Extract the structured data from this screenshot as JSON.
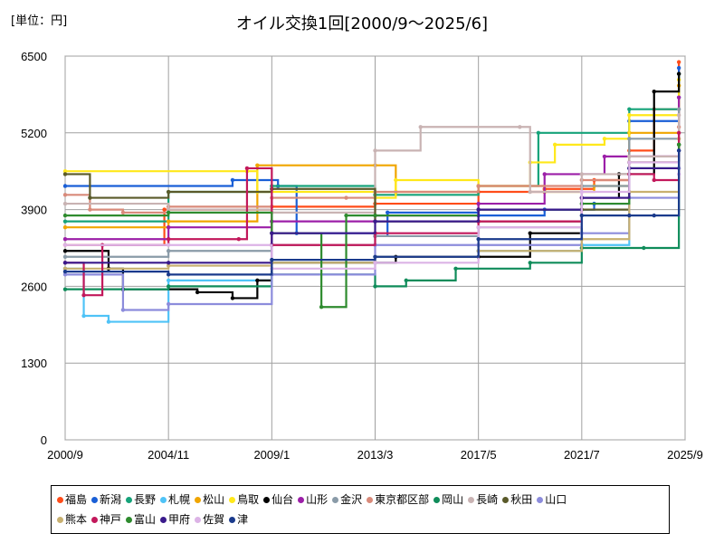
{
  "unit_label": "[単位：円]",
  "chart_data": {
    "type": "line",
    "title": "オイル交換1回[2000/9～2025/6]",
    "xlabel": "",
    "ylabel": "",
    "x_ticks": [
      "2000/9",
      "2004/11",
      "2009/1",
      "2013/3",
      "2017/5",
      "2021/7",
      "2025/9"
    ],
    "x_range": [
      "2000/9",
      "2025/9"
    ],
    "y_ticks": [
      0,
      1300,
      2600,
      3900,
      5200,
      6500
    ],
    "ylim": [
      0,
      6500
    ],
    "grid": true,
    "legend_position": "bottom",
    "series": [
      {
        "name": "福島",
        "color": "#ff4d1a",
        "points": [
          [
            "2000/9",
            3300
          ],
          [
            "2004/9",
            3900
          ],
          [
            "2009/1",
            3950
          ],
          [
            "2013/3",
            4000
          ],
          [
            "2017/5",
            4200
          ],
          [
            "2020/1",
            4250
          ],
          [
            "2022/1",
            4400
          ],
          [
            "2023/6",
            4900
          ],
          [
            "2024/6",
            5600
          ],
          [
            "2025/6",
            6400
          ]
        ]
      },
      {
        "name": "新潟",
        "color": "#1a5fd6",
        "points": [
          [
            "2000/9",
            4300
          ],
          [
            "2007/6",
            4400
          ],
          [
            "2009/4",
            4300
          ],
          [
            "2010/1",
            3500
          ],
          [
            "2013/3",
            3450
          ],
          [
            "2013/9",
            3850
          ],
          [
            "2017/5",
            3800
          ],
          [
            "2020/1",
            3900
          ],
          [
            "2022/1",
            4000
          ],
          [
            "2023/6",
            5400
          ],
          [
            "2025/6",
            6300
          ]
        ]
      },
      {
        "name": "長野",
        "color": "#16a37a",
        "points": [
          [
            "2000/9",
            3700
          ],
          [
            "2004/11",
            4200
          ],
          [
            "2009/1",
            4300
          ],
          [
            "2013/3",
            4150
          ],
          [
            "2017/5",
            4300
          ],
          [
            "2019/10",
            5200
          ],
          [
            "2023/6",
            5600
          ],
          [
            "2025/6",
            6200
          ]
        ]
      },
      {
        "name": "札幌",
        "color": "#4fc3f7",
        "points": [
          [
            "2000/9",
            2900
          ],
          [
            "2001/6",
            2100
          ],
          [
            "2002/6",
            2000
          ],
          [
            "2004/11",
            2700
          ],
          [
            "2009/1",
            3000
          ],
          [
            "2013/3",
            3100
          ],
          [
            "2017/5",
            3200
          ],
          [
            "2021/7",
            3300
          ],
          [
            "2023/6",
            4600
          ],
          [
            "2025/6",
            5800
          ]
        ]
      },
      {
        "name": "松山",
        "color": "#f0a500",
        "points": [
          [
            "2000/9",
            3600
          ],
          [
            "2004/11",
            3700
          ],
          [
            "2008/6",
            4650
          ],
          [
            "2013/3",
            4650
          ],
          [
            "2014/1",
            4200
          ],
          [
            "2017/5",
            4300
          ],
          [
            "2020/1",
            4200
          ],
          [
            "2022/1",
            4300
          ],
          [
            "2023/6",
            5200
          ],
          [
            "2025/6",
            6000
          ]
        ]
      },
      {
        "name": "鳥取",
        "color": "#ffe81a",
        "points": [
          [
            "2000/9",
            4550
          ],
          [
            "2008/1",
            4550
          ],
          [
            "2008/6",
            4200
          ],
          [
            "2013/3",
            4100
          ],
          [
            "2014/1",
            4400
          ],
          [
            "2017/5",
            4300
          ],
          [
            "2019/6",
            4700
          ],
          [
            "2020/6",
            5000
          ],
          [
            "2022/6",
            5100
          ],
          [
            "2023/6",
            5500
          ],
          [
            "2025/6",
            6100
          ]
        ]
      },
      {
        "name": "仙台",
        "color": "#000000",
        "points": [
          [
            "2000/9",
            3200
          ],
          [
            "2002/6",
            2900
          ],
          [
            "2003/1",
            2550
          ],
          [
            "2006/1",
            2500
          ],
          [
            "2007/6",
            2400
          ],
          [
            "2008/6",
            2700
          ],
          [
            "2009/1",
            3000
          ],
          [
            "2013/3",
            3000
          ],
          [
            "2014/1",
            3100
          ],
          [
            "2017/5",
            3100
          ],
          [
            "2019/6",
            3500
          ],
          [
            "2021/7",
            4100
          ],
          [
            "2023/1",
            4500
          ],
          [
            "2024/6",
            5900
          ],
          [
            "2025/6",
            6200
          ]
        ]
      },
      {
        "name": "山形",
        "color": "#9c1fa8",
        "points": [
          [
            "2000/9",
            3400
          ],
          [
            "2004/11",
            3600
          ],
          [
            "2009/1",
            3700
          ],
          [
            "2013/3",
            3800
          ],
          [
            "2017/5",
            4000
          ],
          [
            "2020/1",
            4500
          ],
          [
            "2022/6",
            4800
          ],
          [
            "2025/6",
            5800
          ]
        ]
      },
      {
        "name": "金沢",
        "color": "#8a9ba8",
        "points": [
          [
            "2000/9",
            3100
          ],
          [
            "2004/11",
            3200
          ],
          [
            "2009/1",
            3300
          ],
          [
            "2013/3",
            3450
          ],
          [
            "2017/5",
            3600
          ],
          [
            "2021/7",
            4300
          ],
          [
            "2023/6",
            5100
          ],
          [
            "2025/6",
            5600
          ]
        ]
      },
      {
        "name": "東京都区部",
        "color": "#d98a7a",
        "points": [
          [
            "2000/9",
            4150
          ],
          [
            "2001/9",
            3900
          ],
          [
            "2003/1",
            3850
          ],
          [
            "2004/11",
            3950
          ],
          [
            "2009/1",
            4100
          ],
          [
            "2012/1",
            4100
          ],
          [
            "2013/3",
            4200
          ],
          [
            "2017/5",
            4300
          ],
          [
            "2021/7",
            4400
          ],
          [
            "2023/6",
            4700
          ],
          [
            "2025/6",
            5300
          ]
        ]
      },
      {
        "name": "岡山",
        "color": "#0f8c5a",
        "points": [
          [
            "2000/9",
            2550
          ],
          [
            "2004/11",
            2600
          ],
          [
            "2009/1",
            2800
          ],
          [
            "2013/3",
            2600
          ],
          [
            "2014/6",
            2700
          ],
          [
            "2016/6",
            2900
          ],
          [
            "2019/6",
            3000
          ],
          [
            "2021/7",
            3250
          ],
          [
            "2024/1",
            3250
          ],
          [
            "2025/6",
            5000
          ]
        ]
      },
      {
        "name": "長崎",
        "color": "#c9b3b3",
        "points": [
          [
            "2000/9",
            4000
          ],
          [
            "2004/11",
            3900
          ],
          [
            "2009/1",
            3850
          ],
          [
            "2013/3",
            4900
          ],
          [
            "2015/1",
            5300
          ],
          [
            "2019/1",
            5300
          ],
          [
            "2019/6",
            4200
          ],
          [
            "2021/7",
            4500
          ],
          [
            "2023/6",
            4800
          ],
          [
            "2025/6",
            5500
          ]
        ]
      },
      {
        "name": "秋田",
        "color": "#5a5a2a",
        "points": [
          [
            "2000/9",
            4500
          ],
          [
            "2001/9",
            4100
          ],
          [
            "2004/11",
            4200
          ],
          [
            "2009/1",
            4250
          ],
          [
            "2013/3",
            3700
          ],
          [
            "2017/5",
            3700
          ],
          [
            "2021/7",
            3900
          ],
          [
            "2023/6",
            4700
          ],
          [
            "2025/6",
            5000
          ]
        ]
      },
      {
        "name": "山口",
        "color": "#8c8cdc",
        "points": [
          [
            "2000/9",
            2800
          ],
          [
            "2003/1",
            2200
          ],
          [
            "2004/11",
            2300
          ],
          [
            "2009/1",
            2800
          ],
          [
            "2013/3",
            3300
          ],
          [
            "2017/5",
            3300
          ],
          [
            "2021/7",
            3500
          ],
          [
            "2023/6",
            4100
          ],
          [
            "2025/6",
            4600
          ]
        ]
      },
      {
        "name": "熊本",
        "color": "#c8b070",
        "points": [
          [
            "2000/9",
            2900
          ],
          [
            "2004/11",
            2950
          ],
          [
            "2009/1",
            3000
          ],
          [
            "2013/3",
            3100
          ],
          [
            "2017/5",
            3200
          ],
          [
            "2021/7",
            3400
          ],
          [
            "2023/6",
            4200
          ],
          [
            "2025/6",
            5100
          ]
        ]
      },
      {
        "name": "神戸",
        "color": "#c2185b",
        "points": [
          [
            "2000/9",
            3000
          ],
          [
            "2001/6",
            2450
          ],
          [
            "2002/3",
            3300
          ],
          [
            "2004/11",
            3400
          ],
          [
            "2007/9",
            3400
          ],
          [
            "2008/1",
            4600
          ],
          [
            "2009/1",
            3300
          ],
          [
            "2013/3",
            3500
          ],
          [
            "2017/5",
            3700
          ],
          [
            "2021/7",
            4100
          ],
          [
            "2023/6",
            4500
          ],
          [
            "2024/6",
            4400
          ],
          [
            "2025/6",
            5200
          ]
        ]
      },
      {
        "name": "富山",
        "color": "#2e8b2e",
        "points": [
          [
            "2000/9",
            3800
          ],
          [
            "2004/11",
            3850
          ],
          [
            "2009/1",
            3500
          ],
          [
            "2011/1",
            2250
          ],
          [
            "2012/1",
            3800
          ],
          [
            "2013/3",
            3800
          ],
          [
            "2017/5",
            3900
          ],
          [
            "2021/7",
            4000
          ],
          [
            "2023/6",
            4600
          ],
          [
            "2025/6",
            5000
          ]
        ]
      },
      {
        "name": "甲府",
        "color": "#3a1a8c",
        "points": [
          [
            "2000/9",
            3000
          ],
          [
            "2004/11",
            3000
          ],
          [
            "2009/1",
            3500
          ],
          [
            "2013/3",
            3700
          ],
          [
            "2017/5",
            3900
          ],
          [
            "2021/7",
            4100
          ],
          [
            "2023/6",
            4600
          ],
          [
            "2025/6",
            4900
          ]
        ]
      },
      {
        "name": "佐賀",
        "color": "#dcb3e6",
        "points": [
          [
            "2000/9",
            3300
          ],
          [
            "2004/11",
            3300
          ],
          [
            "2009/1",
            2900
          ],
          [
            "2013/3",
            3000
          ],
          [
            "2017/5",
            3600
          ],
          [
            "2021/7",
            4200
          ],
          [
            "2023/6",
            4700
          ],
          [
            "2025/6",
            4500
          ]
        ]
      },
      {
        "name": "津",
        "color": "#1a3a8c",
        "points": [
          [
            "2000/9",
            2850
          ],
          [
            "2004/11",
            2800
          ],
          [
            "2009/1",
            3050
          ],
          [
            "2013/3",
            3100
          ],
          [
            "2017/5",
            3400
          ],
          [
            "2021/7",
            3800
          ],
          [
            "2023/6",
            3800
          ],
          [
            "2024/6",
            3800
          ],
          [
            "2025/6",
            4900
          ]
        ]
      }
    ]
  }
}
